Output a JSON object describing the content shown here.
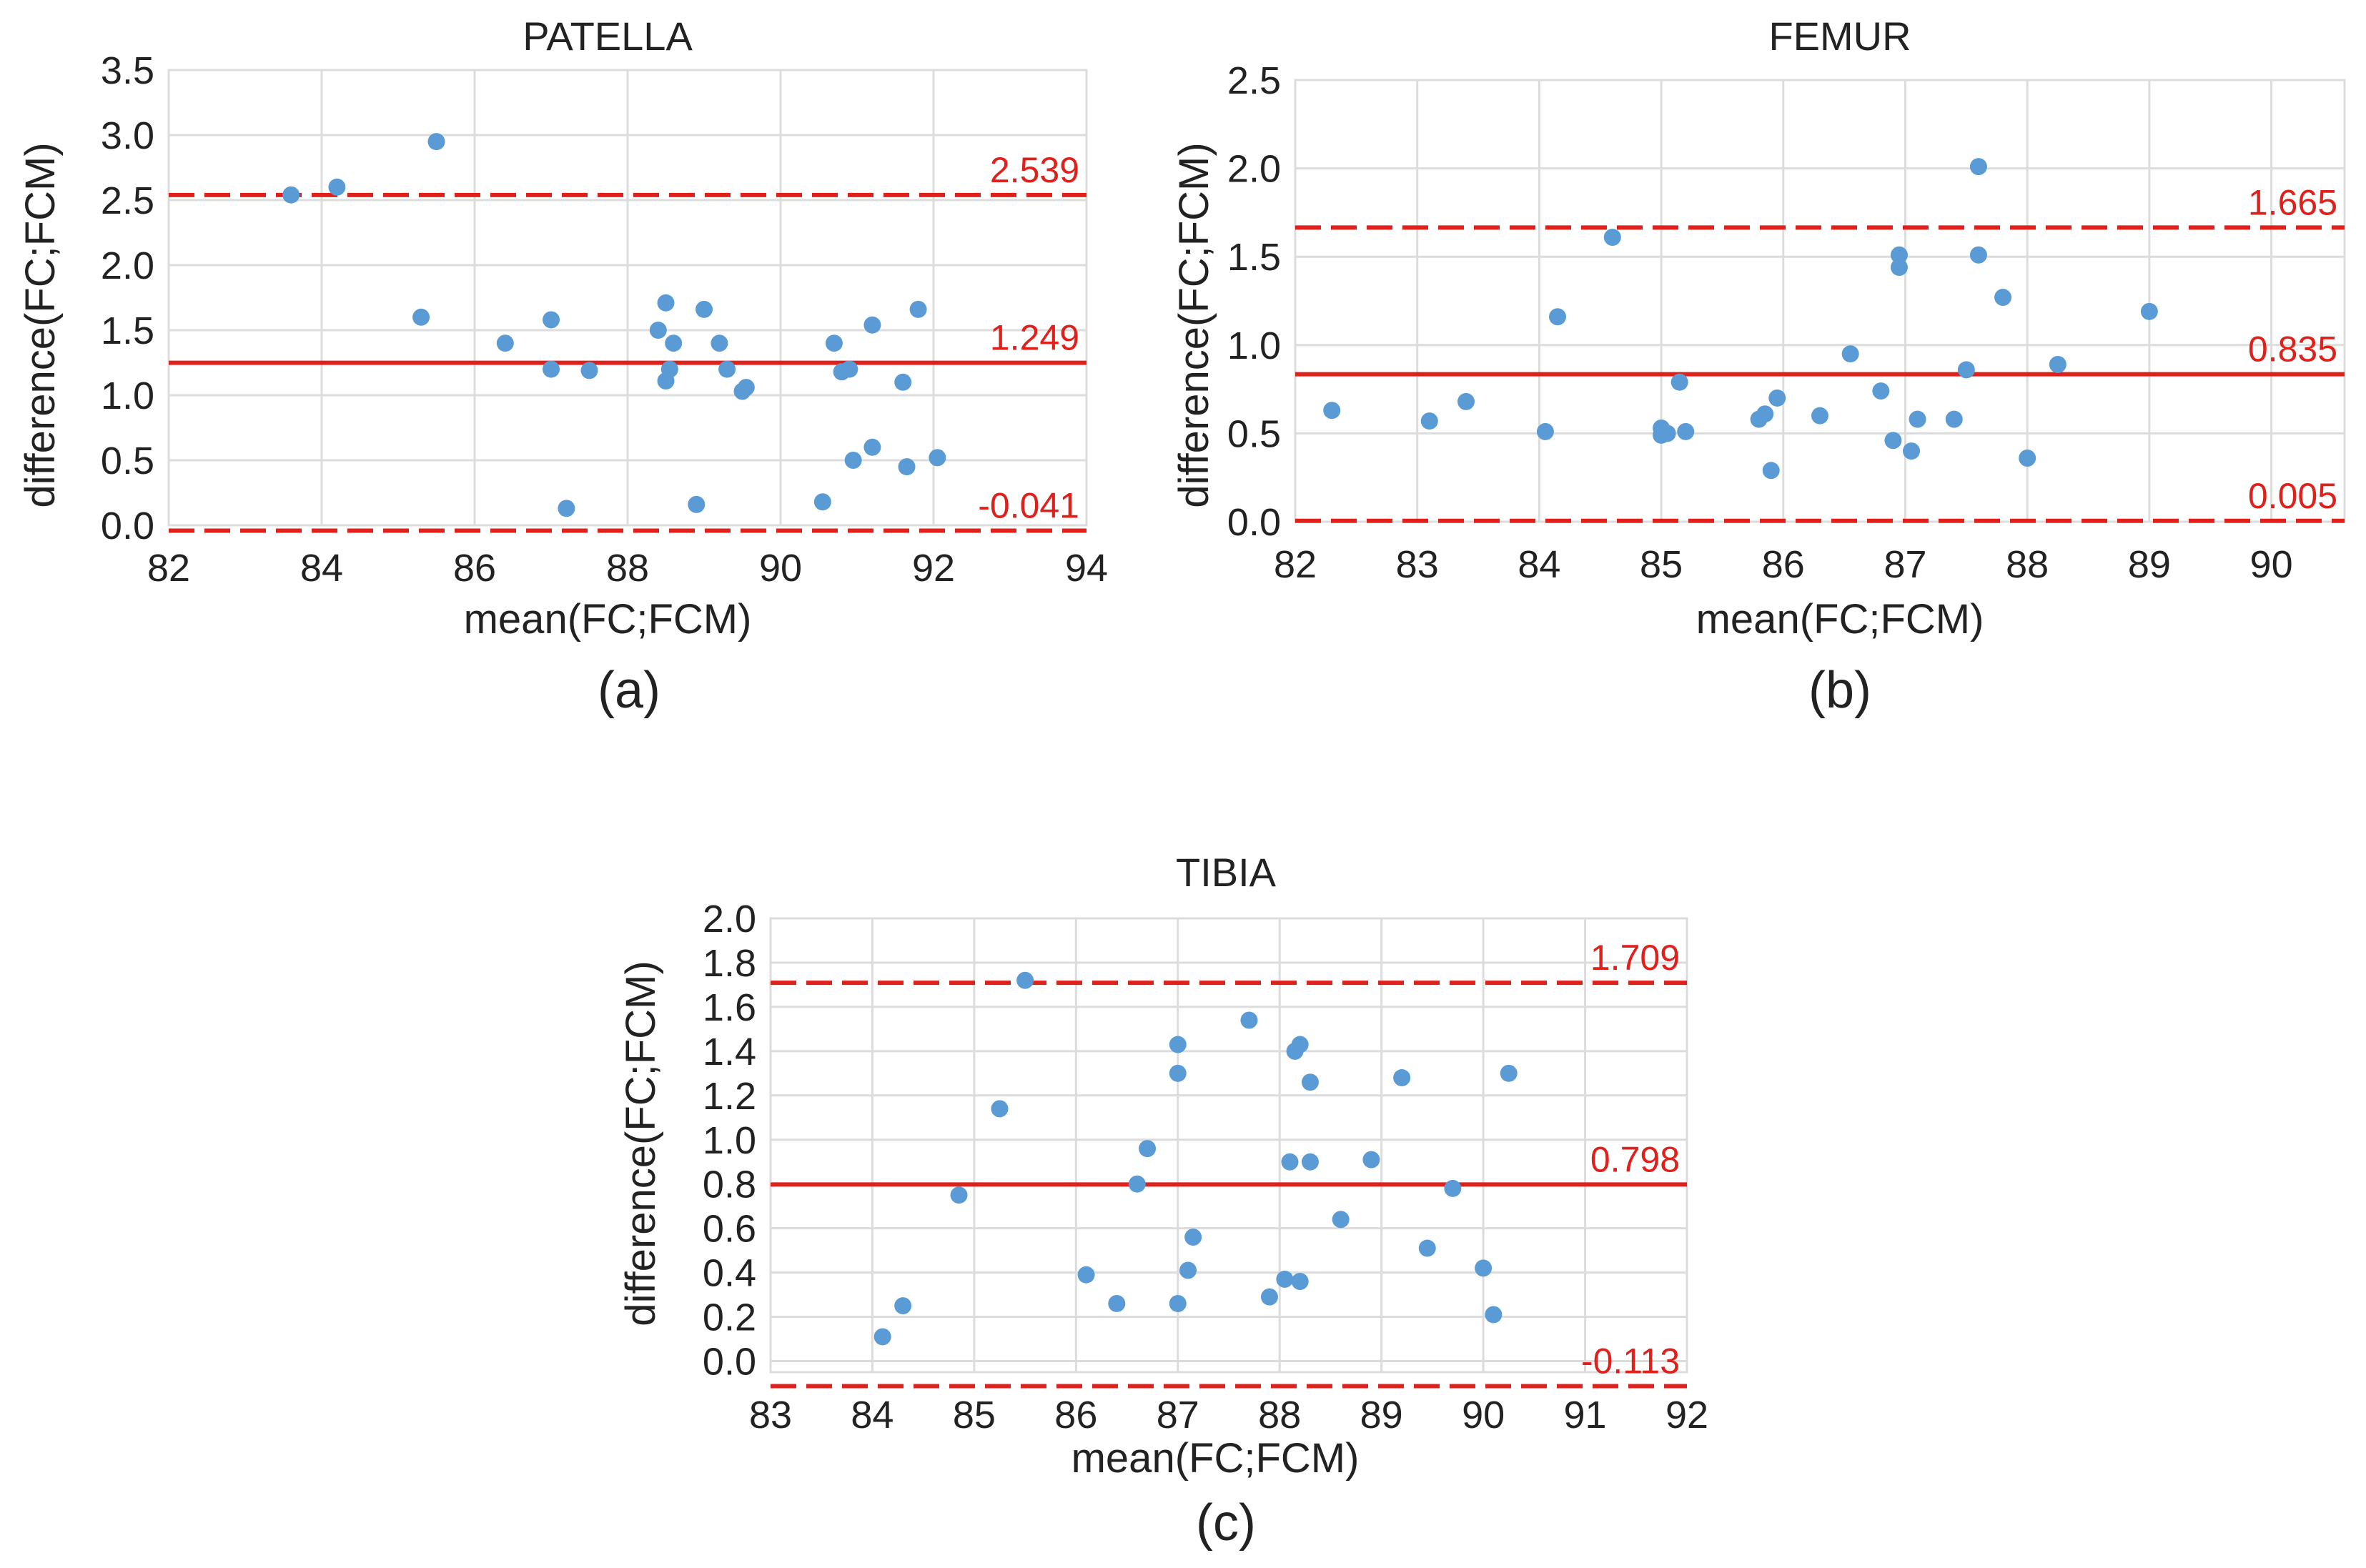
{
  "colors": {
    "point": "#5b9bd5",
    "limit_line": "#e0201b",
    "grid": "#dcdcdc"
  },
  "chart_data": [
    {
      "type": "scatter",
      "title": "PATELLA",
      "panel_label": "(a)",
      "xlabel": "mean(FC;FCM)",
      "ylabel": "difference(FC;FCM)",
      "xlim": [
        82,
        94
      ],
      "ylim": [
        0,
        3.5
      ],
      "xticks": [
        "82",
        "84",
        "86",
        "88",
        "90",
        "92",
        "94"
      ],
      "yticks": [
        "0.0",
        "0.5",
        "1.0",
        "1.5",
        "2.0",
        "2.5",
        "3.0",
        "3.5"
      ],
      "grid": true,
      "reference_lines": [
        {
          "name": "upper limit of agreement",
          "value": 2.539,
          "label": "2.539",
          "style": "dashed"
        },
        {
          "name": "mean difference",
          "value": 1.249,
          "label": "1.249",
          "style": "solid"
        },
        {
          "name": "lower limit of agreement",
          "value": -0.041,
          "label": "-0.041",
          "style": "dashed"
        }
      ],
      "points": [
        [
          83.6,
          2.54
        ],
        [
          84.2,
          2.6
        ],
        [
          85.5,
          2.95
        ],
        [
          85.3,
          1.6
        ],
        [
          86.4,
          1.4
        ],
        [
          87.0,
          1.58
        ],
        [
          87.0,
          1.2
        ],
        [
          87.5,
          1.19
        ],
        [
          87.2,
          0.13
        ],
        [
          88.5,
          1.71
        ],
        [
          88.4,
          1.5
        ],
        [
          88.6,
          1.4
        ],
        [
          88.55,
          1.2
        ],
        [
          88.5,
          1.11
        ],
        [
          89.0,
          1.66
        ],
        [
          89.2,
          1.4
        ],
        [
          89.3,
          1.2
        ],
        [
          89.5,
          1.03
        ],
        [
          89.55,
          1.06
        ],
        [
          88.9,
          0.16
        ],
        [
          90.7,
          1.4
        ],
        [
          90.8,
          1.18
        ],
        [
          90.9,
          1.2
        ],
        [
          90.95,
          0.5
        ],
        [
          91.2,
          1.54
        ],
        [
          91.2,
          0.6
        ],
        [
          91.6,
          1.1
        ],
        [
          91.8,
          1.66
        ],
        [
          91.65,
          0.45
        ],
        [
          92.05,
          0.52
        ],
        [
          90.55,
          0.18
        ]
      ]
    },
    {
      "type": "scatter",
      "title": "FEMUR",
      "panel_label": "(b)",
      "xlabel": "mean(FC;FCM)",
      "ylabel": "difference(FC;FCM)",
      "xlim": [
        82,
        90.6
      ],
      "ylim": [
        0,
        2.5
      ],
      "xticks": [
        "82",
        "83",
        "84",
        "85",
        "86",
        "87",
        "88",
        "89",
        "90"
      ],
      "yticks": [
        "0.0",
        "0.5",
        "1.0",
        "1.5",
        "2.0",
        "2.5"
      ],
      "grid": true,
      "reference_lines": [
        {
          "name": "upper limit of agreement",
          "value": 1.665,
          "label": "1.665",
          "style": "dashed"
        },
        {
          "name": "mean difference",
          "value": 0.835,
          "label": "0.835",
          "style": "solid"
        },
        {
          "name": "lower limit of agreement",
          "value": 0.005,
          "label": "0.005",
          "style": "dashed"
        }
      ],
      "points": [
        [
          82.3,
          0.63
        ],
        [
          83.1,
          0.57
        ],
        [
          83.4,
          0.68
        ],
        [
          84.05,
          0.51
        ],
        [
          84.15,
          1.16
        ],
        [
          84.6,
          1.61
        ],
        [
          85.0,
          0.53
        ],
        [
          85.0,
          0.49
        ],
        [
          85.05,
          0.5
        ],
        [
          85.15,
          0.79
        ],
        [
          85.2,
          0.51
        ],
        [
          85.8,
          0.58
        ],
        [
          85.85,
          0.61
        ],
        [
          85.9,
          0.29
        ],
        [
          85.95,
          0.7
        ],
        [
          86.3,
          0.6
        ],
        [
          86.55,
          0.95
        ],
        [
          86.8,
          0.74
        ],
        [
          86.9,
          0.46
        ],
        [
          86.95,
          1.51
        ],
        [
          86.95,
          1.44
        ],
        [
          87.05,
          0.4
        ],
        [
          87.1,
          0.58
        ],
        [
          87.4,
          0.58
        ],
        [
          87.5,
          0.86
        ],
        [
          87.6,
          1.51
        ],
        [
          87.6,
          2.01
        ],
        [
          87.8,
          1.27
        ],
        [
          88.0,
          0.36
        ],
        [
          88.25,
          0.89
        ],
        [
          89.0,
          1.19
        ]
      ]
    },
    {
      "type": "scatter",
      "title": "TIBIA",
      "panel_label": "(c)",
      "xlabel": "mean(FC;FCM)",
      "ylabel": "difference(FC;FCM)",
      "xlim": [
        83,
        92
      ],
      "ylim": [
        -0.05,
        2.0
      ],
      "xticks": [
        "83",
        "84",
        "85",
        "86",
        "87",
        "88",
        "89",
        "90",
        "91",
        "92"
      ],
      "yticks": [
        "0.0",
        "0.2",
        "0.4",
        "0.6",
        "0.8",
        "1.0",
        "1.2",
        "1.4",
        "1.6",
        "1.8",
        "2.0"
      ],
      "grid": true,
      "reference_lines": [
        {
          "name": "upper limit of agreement",
          "value": 1.709,
          "label": "1.709",
          "style": "dashed"
        },
        {
          "name": "mean difference",
          "value": 0.798,
          "label": "0.798",
          "style": "solid"
        },
        {
          "name": "lower limit of agreement",
          "value": -0.113,
          "label": "-0.113",
          "style": "dashed"
        }
      ],
      "points": [
        [
          84.1,
          0.11
        ],
        [
          84.3,
          0.25
        ],
        [
          84.85,
          0.75
        ],
        [
          85.25,
          1.14
        ],
        [
          85.5,
          1.72
        ],
        [
          86.1,
          0.39
        ],
        [
          86.4,
          0.26
        ],
        [
          86.6,
          0.8
        ],
        [
          86.7,
          0.96
        ],
        [
          87.0,
          1.43
        ],
        [
          87.0,
          1.3
        ],
        [
          87.0,
          0.26
        ],
        [
          87.1,
          0.41
        ],
        [
          87.15,
          0.56
        ],
        [
          87.7,
          1.54
        ],
        [
          87.9,
          0.29
        ],
        [
          88.05,
          0.37
        ],
        [
          88.1,
          0.9
        ],
        [
          88.15,
          1.4
        ],
        [
          88.2,
          1.43
        ],
        [
          88.2,
          0.36
        ],
        [
          88.3,
          1.26
        ],
        [
          88.3,
          0.9
        ],
        [
          88.6,
          0.64
        ],
        [
          88.9,
          0.91
        ],
        [
          89.2,
          1.28
        ],
        [
          89.45,
          0.51
        ],
        [
          89.7,
          0.78
        ],
        [
          90.0,
          0.42
        ],
        [
          90.1,
          0.21
        ],
        [
          90.25,
          1.3
        ]
      ]
    }
  ]
}
